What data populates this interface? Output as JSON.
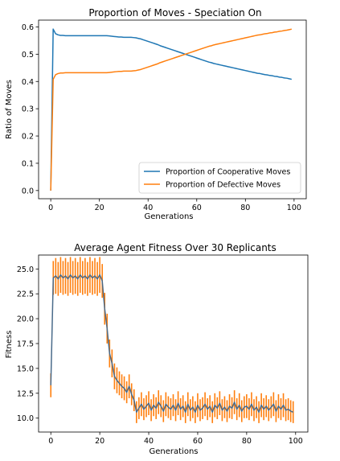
{
  "chart_data": [
    {
      "type": "line",
      "title": "Proportion of Moves - Speciation On",
      "xlabel": "Generations",
      "ylabel": "Ratio of Moves",
      "xlim": [
        -5,
        105
      ],
      "ylim": [
        -0.03,
        0.625
      ],
      "xticks": [
        0,
        20,
        40,
        60,
        80,
        100
      ],
      "yticks": [
        0.0,
        0.1,
        0.2,
        0.3,
        0.4,
        0.5,
        0.6
      ],
      "ytick_labels": [
        "0.0",
        "0.1",
        "0.2",
        "0.3",
        "0.4",
        "0.5",
        "0.6"
      ],
      "legend_position": "lower-right",
      "grid": false,
      "x": [
        0,
        1,
        2,
        3,
        4,
        5,
        6,
        7,
        8,
        9,
        10,
        11,
        12,
        13,
        14,
        15,
        16,
        17,
        18,
        19,
        20,
        21,
        22,
        23,
        24,
        25,
        26,
        27,
        28,
        29,
        30,
        31,
        32,
        33,
        34,
        35,
        36,
        37,
        38,
        39,
        40,
        41,
        42,
        43,
        44,
        45,
        46,
        47,
        48,
        49,
        50,
        51,
        52,
        53,
        54,
        55,
        56,
        57,
        58,
        59,
        60,
        61,
        62,
        63,
        64,
        65,
        66,
        67,
        68,
        69,
        70,
        71,
        72,
        73,
        74,
        75,
        76,
        77,
        78,
        79,
        80,
        81,
        82,
        83,
        84,
        85,
        86,
        87,
        88,
        89,
        90,
        91,
        92,
        93,
        94,
        95,
        96,
        97,
        98,
        99
      ],
      "series": [
        {
          "name": "Proportion of Cooperative Moves",
          "color": "#1f77b4",
          "values": [
            0.0,
            0.592,
            0.575,
            0.571,
            0.569,
            0.569,
            0.568,
            0.568,
            0.568,
            0.568,
            0.568,
            0.568,
            0.568,
            0.568,
            0.568,
            0.568,
            0.568,
            0.568,
            0.568,
            0.568,
            0.568,
            0.568,
            0.568,
            0.568,
            0.567,
            0.566,
            0.565,
            0.564,
            0.563,
            0.563,
            0.562,
            0.562,
            0.562,
            0.562,
            0.561,
            0.56,
            0.558,
            0.556,
            0.553,
            0.55,
            0.547,
            0.544,
            0.541,
            0.538,
            0.535,
            0.531,
            0.528,
            0.525,
            0.522,
            0.519,
            0.516,
            0.513,
            0.51,
            0.507,
            0.504,
            0.501,
            0.498,
            0.495,
            0.492,
            0.489,
            0.486,
            0.483,
            0.48,
            0.477,
            0.474,
            0.471,
            0.469,
            0.466,
            0.464,
            0.462,
            0.46,
            0.458,
            0.456,
            0.454,
            0.452,
            0.45,
            0.448,
            0.446,
            0.444,
            0.442,
            0.44,
            0.438,
            0.436,
            0.434,
            0.432,
            0.43,
            0.429,
            0.427,
            0.425,
            0.424,
            0.422,
            0.421,
            0.419,
            0.418,
            0.416,
            0.415,
            0.413,
            0.412,
            0.41,
            0.408
          ]
        },
        {
          "name": "Proportion of Defective Moves",
          "color": "#ff7f0e",
          "values": [
            0.0,
            0.408,
            0.425,
            0.429,
            0.431,
            0.431,
            0.432,
            0.432,
            0.432,
            0.432,
            0.432,
            0.432,
            0.432,
            0.432,
            0.432,
            0.432,
            0.432,
            0.432,
            0.432,
            0.432,
            0.432,
            0.432,
            0.432,
            0.432,
            0.433,
            0.434,
            0.435,
            0.436,
            0.437,
            0.437,
            0.438,
            0.438,
            0.438,
            0.438,
            0.439,
            0.44,
            0.442,
            0.444,
            0.447,
            0.45,
            0.453,
            0.456,
            0.459,
            0.462,
            0.465,
            0.469,
            0.472,
            0.475,
            0.478,
            0.481,
            0.484,
            0.487,
            0.49,
            0.493,
            0.496,
            0.499,
            0.502,
            0.505,
            0.508,
            0.511,
            0.514,
            0.517,
            0.52,
            0.523,
            0.526,
            0.529,
            0.531,
            0.534,
            0.536,
            0.538,
            0.54,
            0.542,
            0.544,
            0.546,
            0.548,
            0.55,
            0.552,
            0.554,
            0.556,
            0.558,
            0.56,
            0.562,
            0.564,
            0.566,
            0.568,
            0.57,
            0.571,
            0.573,
            0.575,
            0.576,
            0.578,
            0.579,
            0.581,
            0.582,
            0.584,
            0.585,
            0.587,
            0.588,
            0.59,
            0.592
          ]
        }
      ]
    },
    {
      "type": "line",
      "title": "Average Agent Fitness Over 30 Replicants",
      "xlabel": "Generations",
      "ylabel": "Fitness",
      "xlim": [
        -5,
        105
      ],
      "ylim": [
        8.6,
        26.4
      ],
      "xticks": [
        0,
        20,
        40,
        60,
        80,
        100
      ],
      "yticks": [
        10.0,
        12.5,
        15.0,
        17.5,
        20.0,
        22.5,
        25.0
      ],
      "ytick_labels": [
        "10.0",
        "12.5",
        "15.0",
        "17.5",
        "20.0",
        "22.5",
        "25.0"
      ],
      "grid": false,
      "error_bar_color": "#ff7f0e",
      "line_color": "#4a6b8a",
      "x": [
        0,
        1,
        2,
        3,
        4,
        5,
        6,
        7,
        8,
        9,
        10,
        11,
        12,
        13,
        14,
        15,
        16,
        17,
        18,
        19,
        20,
        21,
        22,
        23,
        24,
        25,
        26,
        27,
        28,
        29,
        30,
        31,
        32,
        33,
        34,
        35,
        36,
        37,
        38,
        39,
        40,
        41,
        42,
        43,
        44,
        45,
        46,
        47,
        48,
        49,
        50,
        51,
        52,
        53,
        54,
        55,
        56,
        57,
        58,
        59,
        60,
        61,
        62,
        63,
        64,
        65,
        66,
        67,
        68,
        69,
        70,
        71,
        72,
        73,
        74,
        75,
        76,
        77,
        78,
        79,
        80,
        81,
        82,
        83,
        84,
        85,
        86,
        87,
        88,
        89,
        90,
        91,
        92,
        93,
        94,
        95,
        96,
        97,
        98,
        99
      ],
      "values": [
        13.3,
        24.1,
        24.3,
        24.0,
        24.4,
        24.1,
        24.3,
        24.0,
        24.4,
        24.1,
        24.3,
        24.0,
        24.4,
        24.1,
        24.3,
        24.0,
        24.4,
        24.1,
        24.3,
        24.0,
        24.4,
        23.8,
        21.0,
        19.0,
        16.5,
        15.5,
        14.2,
        13.8,
        13.5,
        13.2,
        13.0,
        12.6,
        13.2,
        12.4,
        11.8,
        10.6,
        11.0,
        11.4,
        10.9,
        11.2,
        11.5,
        10.8,
        11.3,
        11.0,
        11.6,
        11.2,
        10.7,
        11.4,
        11.1,
        10.9,
        11.3,
        10.8,
        11.5,
        10.9,
        11.2,
        10.6,
        11.4,
        10.8,
        11.1,
        10.6,
        11.3,
        10.8,
        11.0,
        11.4,
        10.9,
        11.2,
        10.6,
        11.3,
        11.0,
        11.5,
        10.8,
        11.1,
        10.7,
        11.2,
        11.0,
        11.6,
        10.9,
        11.3,
        10.7,
        11.1,
        11.2,
        10.9,
        11.4,
        10.8,
        11.1,
        10.6,
        11.3,
        10.9,
        11.2,
        10.8,
        11.1,
        11.4,
        10.7,
        11.2,
        10.9,
        11.3,
        10.8,
        10.9,
        10.7,
        10.6
      ],
      "errors": [
        1.2,
        1.7,
        1.8,
        1.7,
        1.8,
        1.7,
        1.8,
        1.7,
        1.8,
        1.7,
        1.8,
        1.7,
        1.8,
        1.7,
        1.8,
        1.7,
        1.8,
        1.7,
        1.8,
        1.7,
        1.8,
        1.7,
        1.6,
        1.5,
        1.4,
        1.4,
        1.3,
        1.3,
        1.2,
        1.2,
        1.2,
        1.1,
        1.2,
        1.1,
        1.1,
        1.1,
        1.1,
        1.2,
        1.1,
        1.1,
        1.2,
        1.1,
        1.1,
        1.1,
        1.2,
        1.1,
        1.1,
        1.2,
        1.1,
        1.1,
        1.1,
        1.1,
        1.2,
        1.1,
        1.1,
        1.1,
        1.2,
        1.1,
        1.1,
        1.1,
        1.2,
        1.1,
        1.1,
        1.2,
        1.1,
        1.1,
        1.1,
        1.2,
        1.1,
        1.2,
        1.1,
        1.1,
        1.1,
        1.2,
        1.1,
        1.2,
        1.1,
        1.2,
        1.1,
        1.1,
        1.2,
        1.1,
        1.2,
        1.1,
        1.1,
        1.1,
        1.2,
        1.1,
        1.1,
        1.1,
        1.1,
        1.2,
        1.1,
        1.2,
        1.1,
        1.2,
        1.1,
        1.1,
        1.1,
        1.1
      ]
    }
  ]
}
